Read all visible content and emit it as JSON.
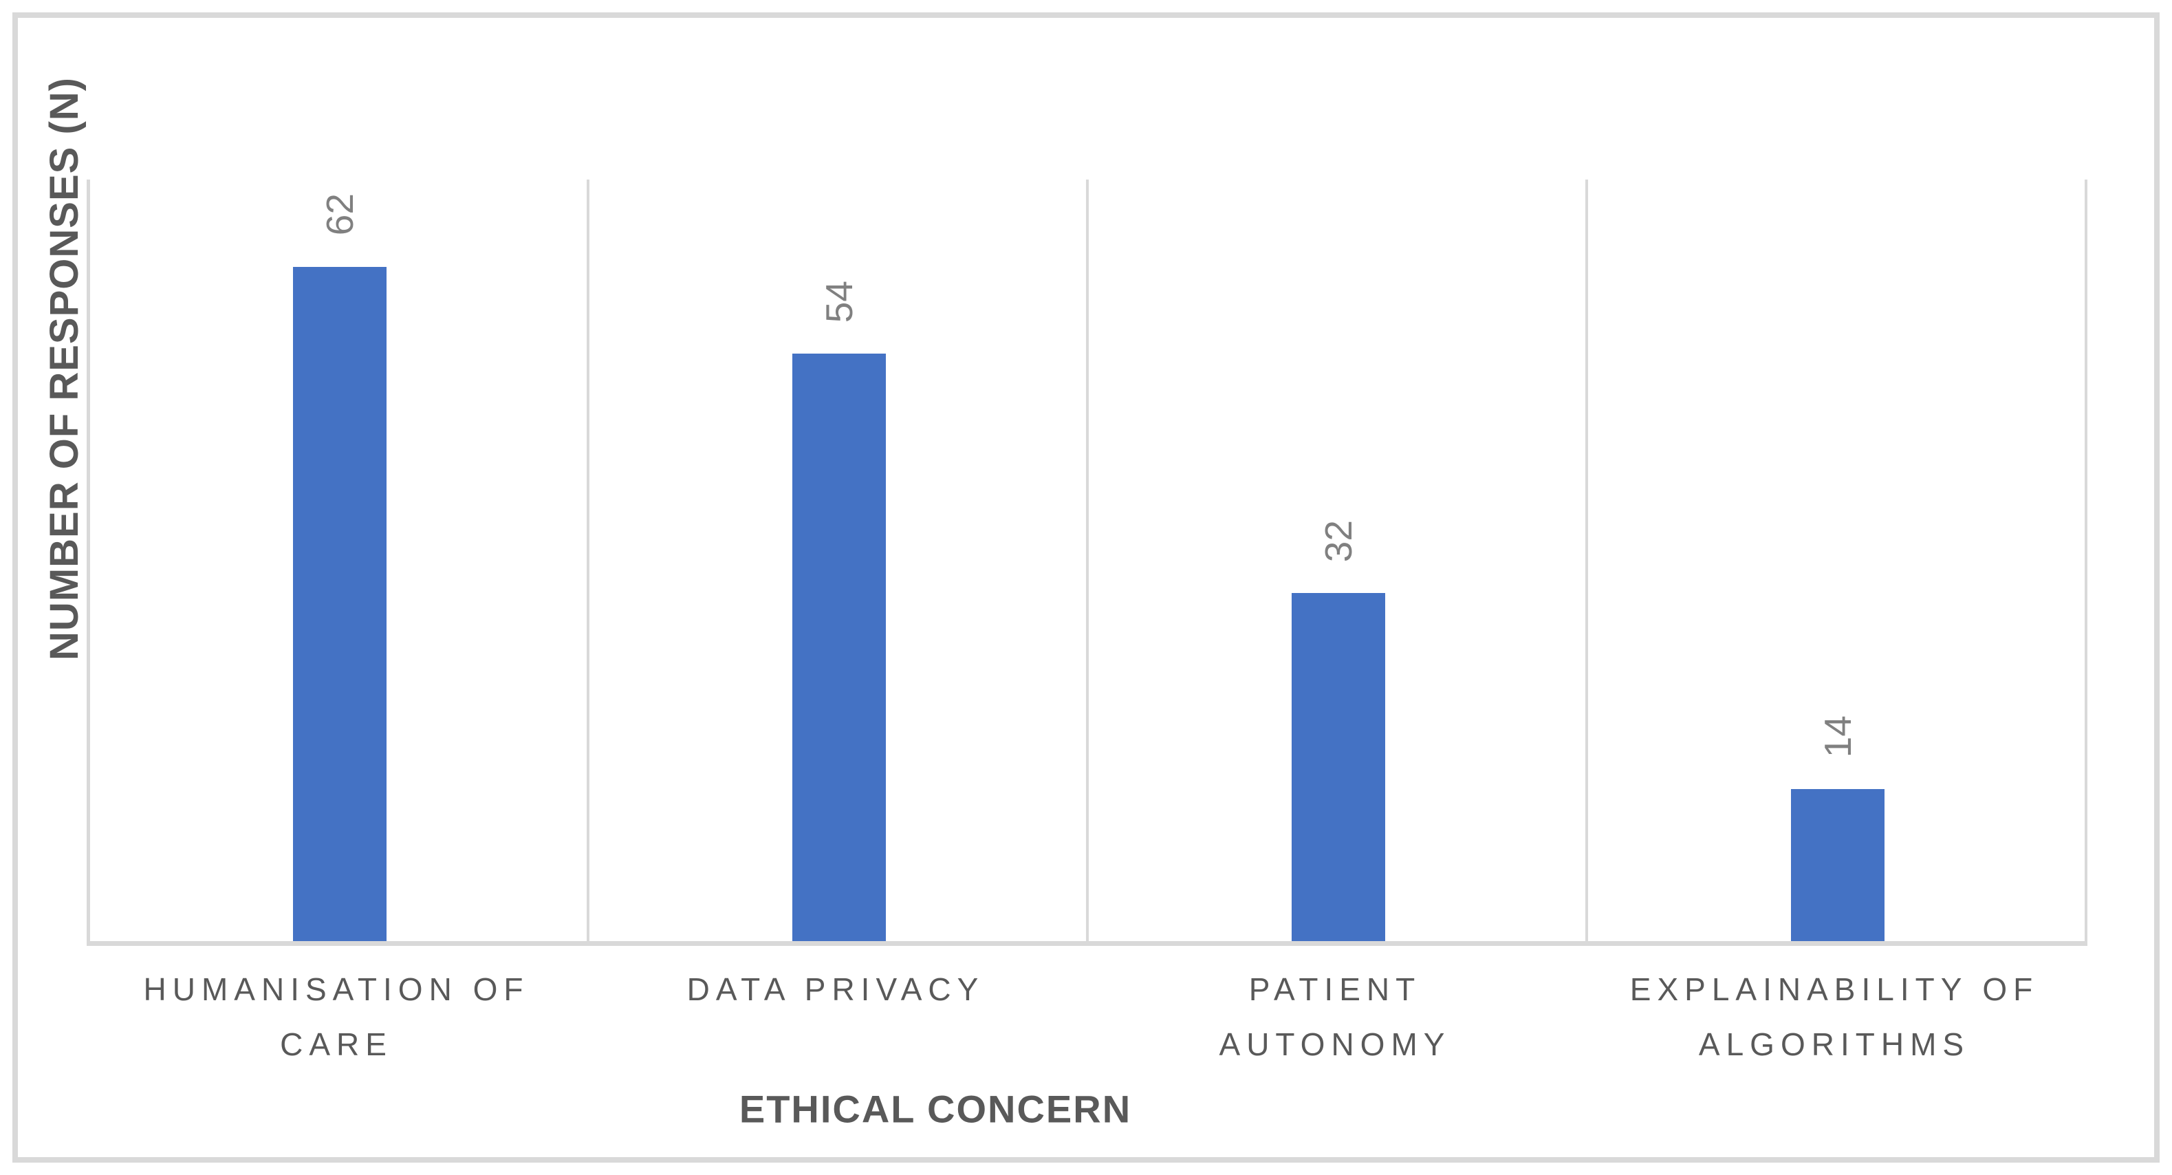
{
  "chart_data": {
    "type": "bar",
    "title": "",
    "xlabel": "ETHICAL CONCERN",
    "ylabel": "NUMBER OF RESPONSES (N)",
    "categories": [
      "HUMANISATION OF CARE",
      "DATA PRIVACY",
      "PATIENT AUTONOMY",
      "EXPLAINABILITY OF ALGORITHMS"
    ],
    "category_lines": [
      [
        "HUMANISATION OF",
        "CARE"
      ],
      [
        "DATA PRIVACY"
      ],
      [
        "PATIENT",
        "AUTONOMY"
      ],
      [
        "EXPLAINABILITY OF",
        "ALGORITHMS"
      ]
    ],
    "values": [
      62,
      54,
      32,
      14
    ],
    "data_labels": [
      "62",
      "54",
      "32",
      "14"
    ],
    "data_label_rotation_deg": 90,
    "ylim": [
      0,
      70
    ],
    "grid": "vertical category separators only, no horizontal gridlines, no y tick labels",
    "legend": "none",
    "colors": {
      "bar": "#4472c4",
      "axis_line": "#d9d9d9",
      "chart_border": "#d9d9d9",
      "data_label_text": "#808080",
      "axis_title_text": "#595959",
      "category_label_text": "#595959",
      "background": "#ffffff"
    }
  }
}
